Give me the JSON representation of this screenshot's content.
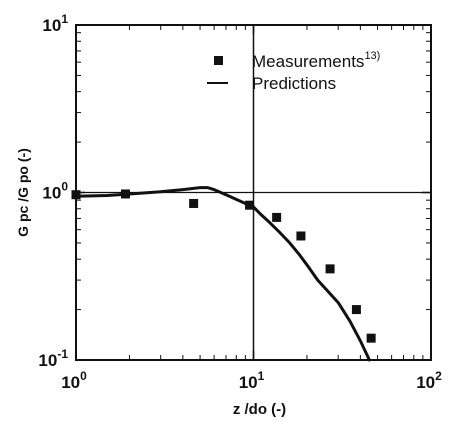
{
  "chart_data": {
    "type": "scatter",
    "x_scale": "log",
    "y_scale": "log",
    "xlim": [
      1,
      100
    ],
    "ylim": [
      0.1,
      10
    ],
    "x_ticks": [
      1,
      10,
      100
    ],
    "y_ticks": [
      0.1,
      1,
      10
    ],
    "x_tick_labels": [
      {
        "base": "10",
        "exp": "0"
      },
      {
        "base": "10",
        "exp": "1"
      },
      {
        "base": "10",
        "exp": "2"
      }
    ],
    "y_tick_labels": [
      {
        "base": "10",
        "exp": "-1"
      },
      {
        "base": "10",
        "exp": "0"
      },
      {
        "base": "10",
        "exp": "1"
      }
    ],
    "xlabel": "z /do  (-)",
    "ylabel": "G pc /G po  (-)",
    "reference_lines": {
      "x": 10,
      "y": 1
    },
    "legend_position": "top-right",
    "series": [
      {
        "name": "Measurements",
        "name_superscript": "13)",
        "kind": "markers",
        "marker": "square",
        "color": "#111111",
        "x": [
          1.0,
          1.9,
          4.6,
          9.5,
          13.5,
          18.5,
          27,
          38,
          46
        ],
        "y": [
          0.97,
          0.98,
          0.86,
          0.84,
          0.71,
          0.55,
          0.35,
          0.2,
          0.135
        ]
      },
      {
        "name": "Predictions",
        "kind": "line",
        "color": "#111111",
        "x": [
          1.0,
          1.5,
          2.0,
          3.0,
          4.0,
          5.0,
          5.5,
          6.0,
          7.0,
          8.0,
          9.0,
          10.0,
          11.0,
          12.0,
          14.0,
          16.0,
          18.0,
          20.0,
          23.0,
          26.0,
          30.0,
          35.0,
          40.0,
          45.0
        ],
        "y": [
          0.95,
          0.96,
          0.98,
          1.01,
          1.04,
          1.07,
          1.07,
          1.04,
          0.97,
          0.91,
          0.86,
          0.82,
          0.74,
          0.68,
          0.58,
          0.5,
          0.43,
          0.37,
          0.3,
          0.26,
          0.22,
          0.17,
          0.13,
          0.1
        ]
      }
    ]
  }
}
